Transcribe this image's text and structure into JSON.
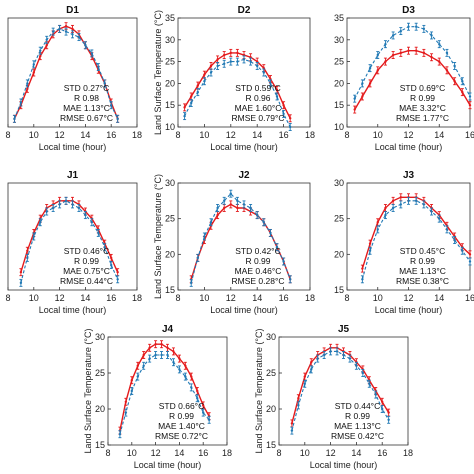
{
  "colors": {
    "model": "#e41a1c",
    "obs": "#1f78b4",
    "axis": "#333333"
  },
  "chart_data": [
    {
      "type": "line",
      "title": "D1",
      "xlabel": "Local time (hour)",
      "ylabel": "",
      "xlim": [
        8,
        18
      ],
      "ylim": [
        15,
        35
      ],
      "xticks": [
        8,
        10,
        12,
        14,
        16,
        18
      ],
      "yticks": [],
      "stats": [
        "STD 0.27°C",
        "R 0.98",
        "MAE 1.13°C",
        "RMSE 0.67°C"
      ],
      "series": [
        {
          "x": [
            8.5,
            9,
            9.5,
            10,
            10.5,
            11,
            11.5,
            12,
            12.5,
            13,
            13.5,
            14,
            14.5,
            15,
            15.5,
            16,
            16.5
          ],
          "y": [
            16.5,
            19,
            22,
            25,
            28,
            30,
            32,
            33,
            33.5,
            33,
            32,
            30,
            28,
            25.5,
            23,
            19.5,
            16.5
          ]
        },
        {
          "x": [
            8.5,
            9,
            9.5,
            10,
            10.5,
            11,
            11.5,
            12,
            12.5,
            13,
            13.5,
            14,
            14.5,
            15,
            15.5,
            16,
            16.5
          ],
          "y": [
            16.5,
            19.5,
            23,
            26.5,
            29,
            31,
            32.5,
            33,
            32.5,
            32,
            31.5,
            30,
            28.5,
            26,
            23,
            19,
            16.5
          ]
        }
      ]
    },
    {
      "type": "line",
      "title": "D2",
      "xlabel": "Local time (hour)",
      "ylabel": "Land Surface Temperature (°C)",
      "xlim": [
        8,
        18
      ],
      "ylim": [
        10,
        35
      ],
      "xticks": [
        8,
        10,
        12,
        14,
        16,
        18
      ],
      "yticks": [
        10,
        15,
        20,
        25,
        30,
        35
      ],
      "stats": [
        "STD 0.59°C",
        "R 0.96",
        "MAE 1.60°C",
        "RMSE 0.79°C"
      ],
      "series": [
        {
          "x": [
            8.5,
            9,
            9.5,
            10,
            10.5,
            11,
            11.5,
            12,
            12.5,
            13,
            13.5,
            14,
            14.5,
            15,
            15.5,
            16,
            16.5
          ],
          "y": [
            14.5,
            17,
            19.5,
            22,
            24,
            25.5,
            26.5,
            27,
            27,
            26.5,
            26,
            25,
            23.5,
            21,
            18.5,
            15,
            12
          ]
        },
        {
          "x": [
            8.5,
            9,
            9.5,
            10,
            10.5,
            11,
            11.5,
            12,
            12.5,
            13,
            13.5,
            14,
            14.5,
            15,
            15.5,
            16,
            16.5
          ],
          "y": [
            12.5,
            15.5,
            18,
            20.5,
            22.5,
            24,
            24.5,
            25,
            25,
            25.5,
            25,
            24,
            22.5,
            20,
            17,
            13,
            10
          ]
        }
      ]
    },
    {
      "type": "line",
      "title": "D3",
      "xlabel": "Local time (hour)",
      "ylabel": "",
      "xlim": [
        8,
        16
      ],
      "ylim": [
        10,
        35
      ],
      "xticks": [
        8,
        10,
        12,
        14,
        16
      ],
      "yticks": [
        10,
        15,
        20,
        25,
        30,
        35
      ],
      "stats": [
        "STD 0.69°C",
        "R 0.99",
        "MAE 3.32°C",
        "RMSE 1.77°C"
      ],
      "series": [
        {
          "x": [
            8.5,
            9,
            9.5,
            10,
            10.5,
            11,
            11.5,
            12,
            12.5,
            13,
            13.5,
            14,
            14.5,
            15,
            15.5,
            16
          ],
          "y": [
            14,
            17,
            20,
            23,
            25,
            26.5,
            27,
            27.5,
            27.5,
            27,
            26,
            25,
            23,
            20.5,
            18,
            15
          ]
        },
        {
          "x": [
            8.5,
            9,
            9.5,
            10,
            10.5,
            11,
            11.5,
            12,
            12.5,
            13,
            13.5,
            14,
            14.5,
            15,
            15.5,
            16
          ],
          "y": [
            16.5,
            20,
            23.5,
            26.5,
            29,
            31,
            32,
            33,
            33,
            32.5,
            31,
            29,
            27,
            24,
            20.5,
            17
          ]
        }
      ]
    },
    {
      "type": "line",
      "title": "J1",
      "xlabel": "Local time (hour)",
      "ylabel": "",
      "xlim": [
        8,
        18
      ],
      "ylim": [
        15,
        30
      ],
      "xticks": [
        8,
        10,
        12,
        14,
        16,
        18
      ],
      "yticks": [],
      "stats": [
        "STD 0.46°C",
        "R 0.99",
        "MAE 0.75°C",
        "RMSE 0.44°C"
      ],
      "series": [
        {
          "x": [
            9,
            9.5,
            10,
            10.5,
            11,
            11.5,
            12,
            12.5,
            13,
            13.5,
            14,
            14.5,
            15,
            15.5,
            16,
            16.5
          ],
          "y": [
            17.5,
            20.5,
            23,
            25,
            26.5,
            27,
            27.5,
            27.5,
            27.5,
            27,
            26,
            25,
            23.5,
            21.5,
            19.5,
            17.5
          ]
        },
        {
          "x": [
            9,
            9.5,
            10,
            10.5,
            11,
            11.5,
            12,
            12.5,
            13,
            13.5,
            14,
            14.5,
            15,
            15.5,
            16,
            16.5
          ],
          "y": [
            16,
            19.5,
            22.5,
            24.5,
            26,
            26.5,
            27,
            27.5,
            27,
            26.5,
            25.5,
            24.5,
            23,
            21,
            18.5,
            16.5
          ]
        }
      ]
    },
    {
      "type": "line",
      "title": "J2",
      "xlabel": "Local time (hour)",
      "ylabel": "Land Surface Temperature (°C)",
      "xlim": [
        8,
        18
      ],
      "ylim": [
        15,
        30
      ],
      "xticks": [
        8,
        10,
        12,
        14,
        16,
        18
      ],
      "yticks": [
        15,
        20,
        25,
        30
      ],
      "stats": [
        "STD 0.42°C",
        "R 0.99",
        "MAE 0.46°C",
        "RMSE 0.28°C"
      ],
      "series": [
        {
          "x": [
            9,
            9.5,
            10,
            10.5,
            11,
            11.5,
            12,
            12.5,
            13,
            13.5,
            14,
            14.5,
            15,
            15.5,
            16,
            16.5
          ],
          "y": [
            16.5,
            19.5,
            22,
            24,
            25.5,
            26.5,
            27,
            26.5,
            26.5,
            26,
            25.5,
            24.5,
            23,
            21,
            19,
            16.5
          ]
        },
        {
          "x": [
            9,
            9.5,
            10,
            10.5,
            11,
            11.5,
            12,
            12.5,
            13,
            13.5,
            14,
            14.5,
            15,
            15.5,
            16,
            16.5
          ],
          "y": [
            16,
            19.5,
            22.5,
            24.5,
            26.5,
            27.5,
            28.5,
            27.5,
            27,
            26.5,
            25.5,
            24.5,
            23,
            21,
            19,
            16.5
          ]
        }
      ]
    },
    {
      "type": "line",
      "title": "J3",
      "xlabel": "Local time (hour)",
      "ylabel": "",
      "xlim": [
        8,
        16
      ],
      "ylim": [
        15,
        30
      ],
      "xticks": [
        8,
        10,
        12,
        14,
        16
      ],
      "yticks": [
        15,
        20,
        25,
        30
      ],
      "stats": [
        "STD 0.45°C",
        "R 0.99",
        "MAE 1.13°C",
        "RMSE 0.38°C"
      ],
      "series": [
        {
          "x": [
            9,
            9.5,
            10,
            10.5,
            11,
            11.5,
            12,
            12.5,
            13,
            13.5,
            14,
            14.5,
            15,
            15.5,
            16
          ],
          "y": [
            18,
            21.5,
            24.5,
            26.5,
            27.5,
            28,
            28,
            28,
            27.5,
            26.5,
            25.5,
            24,
            22.5,
            21,
            20
          ]
        },
        {
          "x": [
            9,
            9.5,
            10,
            10.5,
            11,
            11.5,
            12,
            12.5,
            13,
            13.5,
            14,
            14.5,
            15,
            15.5,
            16
          ],
          "y": [
            16.5,
            20.5,
            23.5,
            25.5,
            26.5,
            27,
            27.5,
            27.5,
            27,
            26,
            25,
            23.5,
            22,
            20.5,
            19
          ]
        }
      ]
    },
    {
      "type": "line",
      "title": "J4",
      "xlabel": "Local time (hour)",
      "ylabel": "Land Surface Temperature (°C)",
      "xlim": [
        8,
        18
      ],
      "ylim": [
        15,
        30
      ],
      "xticks": [
        8,
        10,
        12,
        14,
        16,
        18
      ],
      "yticks": [
        15,
        20,
        25,
        30
      ],
      "stats": [
        "STD 0.66°C",
        "R 0.99",
        "MAE 1.40°C",
        "RMSE 0.72°C"
      ],
      "series": [
        {
          "x": [
            9,
            9.5,
            10,
            10.5,
            11,
            11.5,
            12,
            12.5,
            13,
            13.5,
            14,
            14.5,
            15,
            15.5,
            16,
            16.5
          ],
          "y": [
            17,
            21,
            24,
            26,
            27.5,
            28.5,
            29,
            29,
            28.5,
            28,
            27,
            26,
            24.5,
            22.5,
            20.5,
            19
          ]
        },
        {
          "x": [
            9,
            9.5,
            10,
            10.5,
            11,
            11.5,
            12,
            12.5,
            13,
            13.5,
            14,
            14.5,
            15,
            15.5,
            16,
            16.5
          ],
          "y": [
            16.5,
            19.5,
            22.5,
            24.5,
            26,
            27,
            27.5,
            27.5,
            27.5,
            26.5,
            25.5,
            24.5,
            23,
            21.5,
            19.5,
            18.5
          ]
        }
      ]
    },
    {
      "type": "line",
      "title": "J5",
      "xlabel": "Local time (hour)",
      "ylabel": "Land Surface Temperature (°C)",
      "xlim": [
        8,
        18
      ],
      "ylim": [
        15,
        30
      ],
      "xticks": [
        8,
        10,
        12,
        14,
        16,
        18
      ],
      "yticks": [
        15,
        20,
        25,
        30
      ],
      "stats": [
        "STD 0.44°C",
        "R 0.99",
        "MAE 1.13°C",
        "RMSE 0.42°C"
      ],
      "series": [
        {
          "x": [
            9,
            9.5,
            10,
            10.5,
            11,
            11.5,
            12,
            12.5,
            13,
            13.5,
            14,
            14.5,
            15,
            15.5,
            16,
            16.5
          ],
          "y": [
            18,
            21.5,
            24.5,
            26.5,
            27.5,
            28,
            28.5,
            28.5,
            28,
            27.5,
            26.5,
            25.5,
            24,
            22.5,
            21,
            19.5
          ]
        },
        {
          "x": [
            9,
            9.5,
            10,
            10.5,
            11,
            11.5,
            12,
            12.5,
            13,
            13.5,
            14,
            14.5,
            15,
            15.5,
            16,
            16.5
          ],
          "y": [
            17,
            20.5,
            23.5,
            25.5,
            27,
            27.5,
            28,
            28,
            27.5,
            27,
            26,
            25,
            23.5,
            22,
            20,
            18.5
          ]
        }
      ]
    }
  ]
}
